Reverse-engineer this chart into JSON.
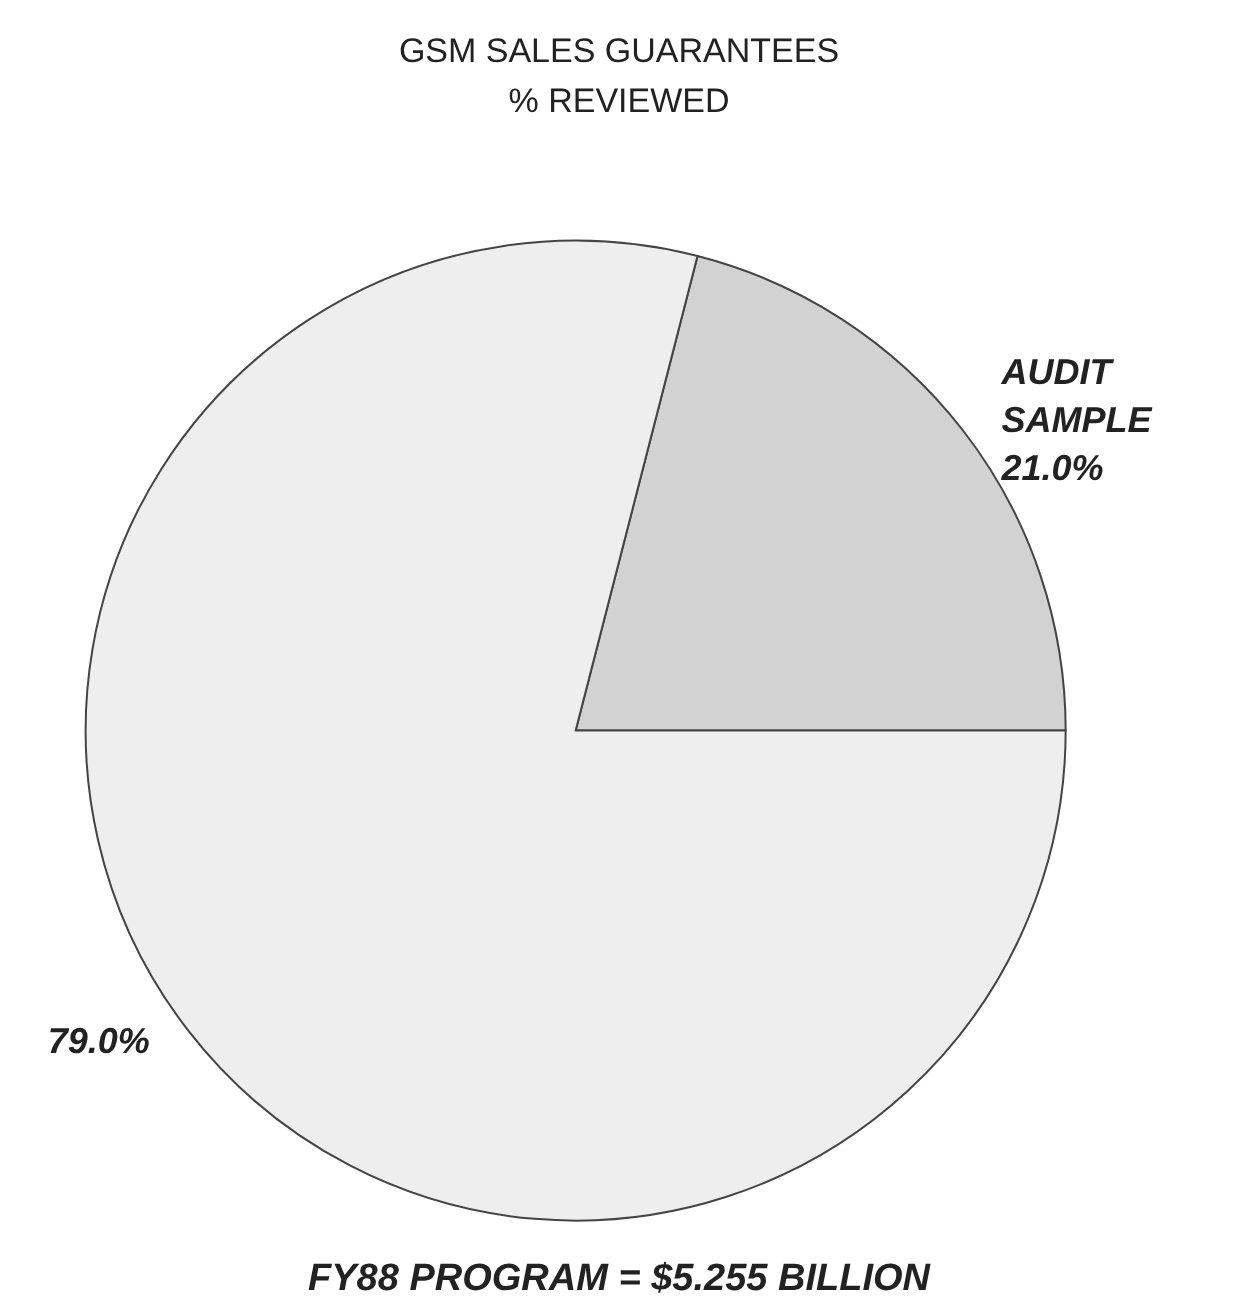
{
  "chart_data": {
    "type": "pie",
    "title": "GSM SALES GUARANTEES",
    "subtitle": "% REVIEWED",
    "categories": [
      "AUDIT SAMPLE",
      null
    ],
    "values": [
      21.0,
      79.0
    ],
    "value_labels": [
      "21.0%",
      "79.0%"
    ],
    "colors": [
      "#d2d2d2",
      "#eeeeee"
    ],
    "annotations": [
      "FY88 PROGRAM = $5.255 BILLION"
    ],
    "legend": false
  }
}
